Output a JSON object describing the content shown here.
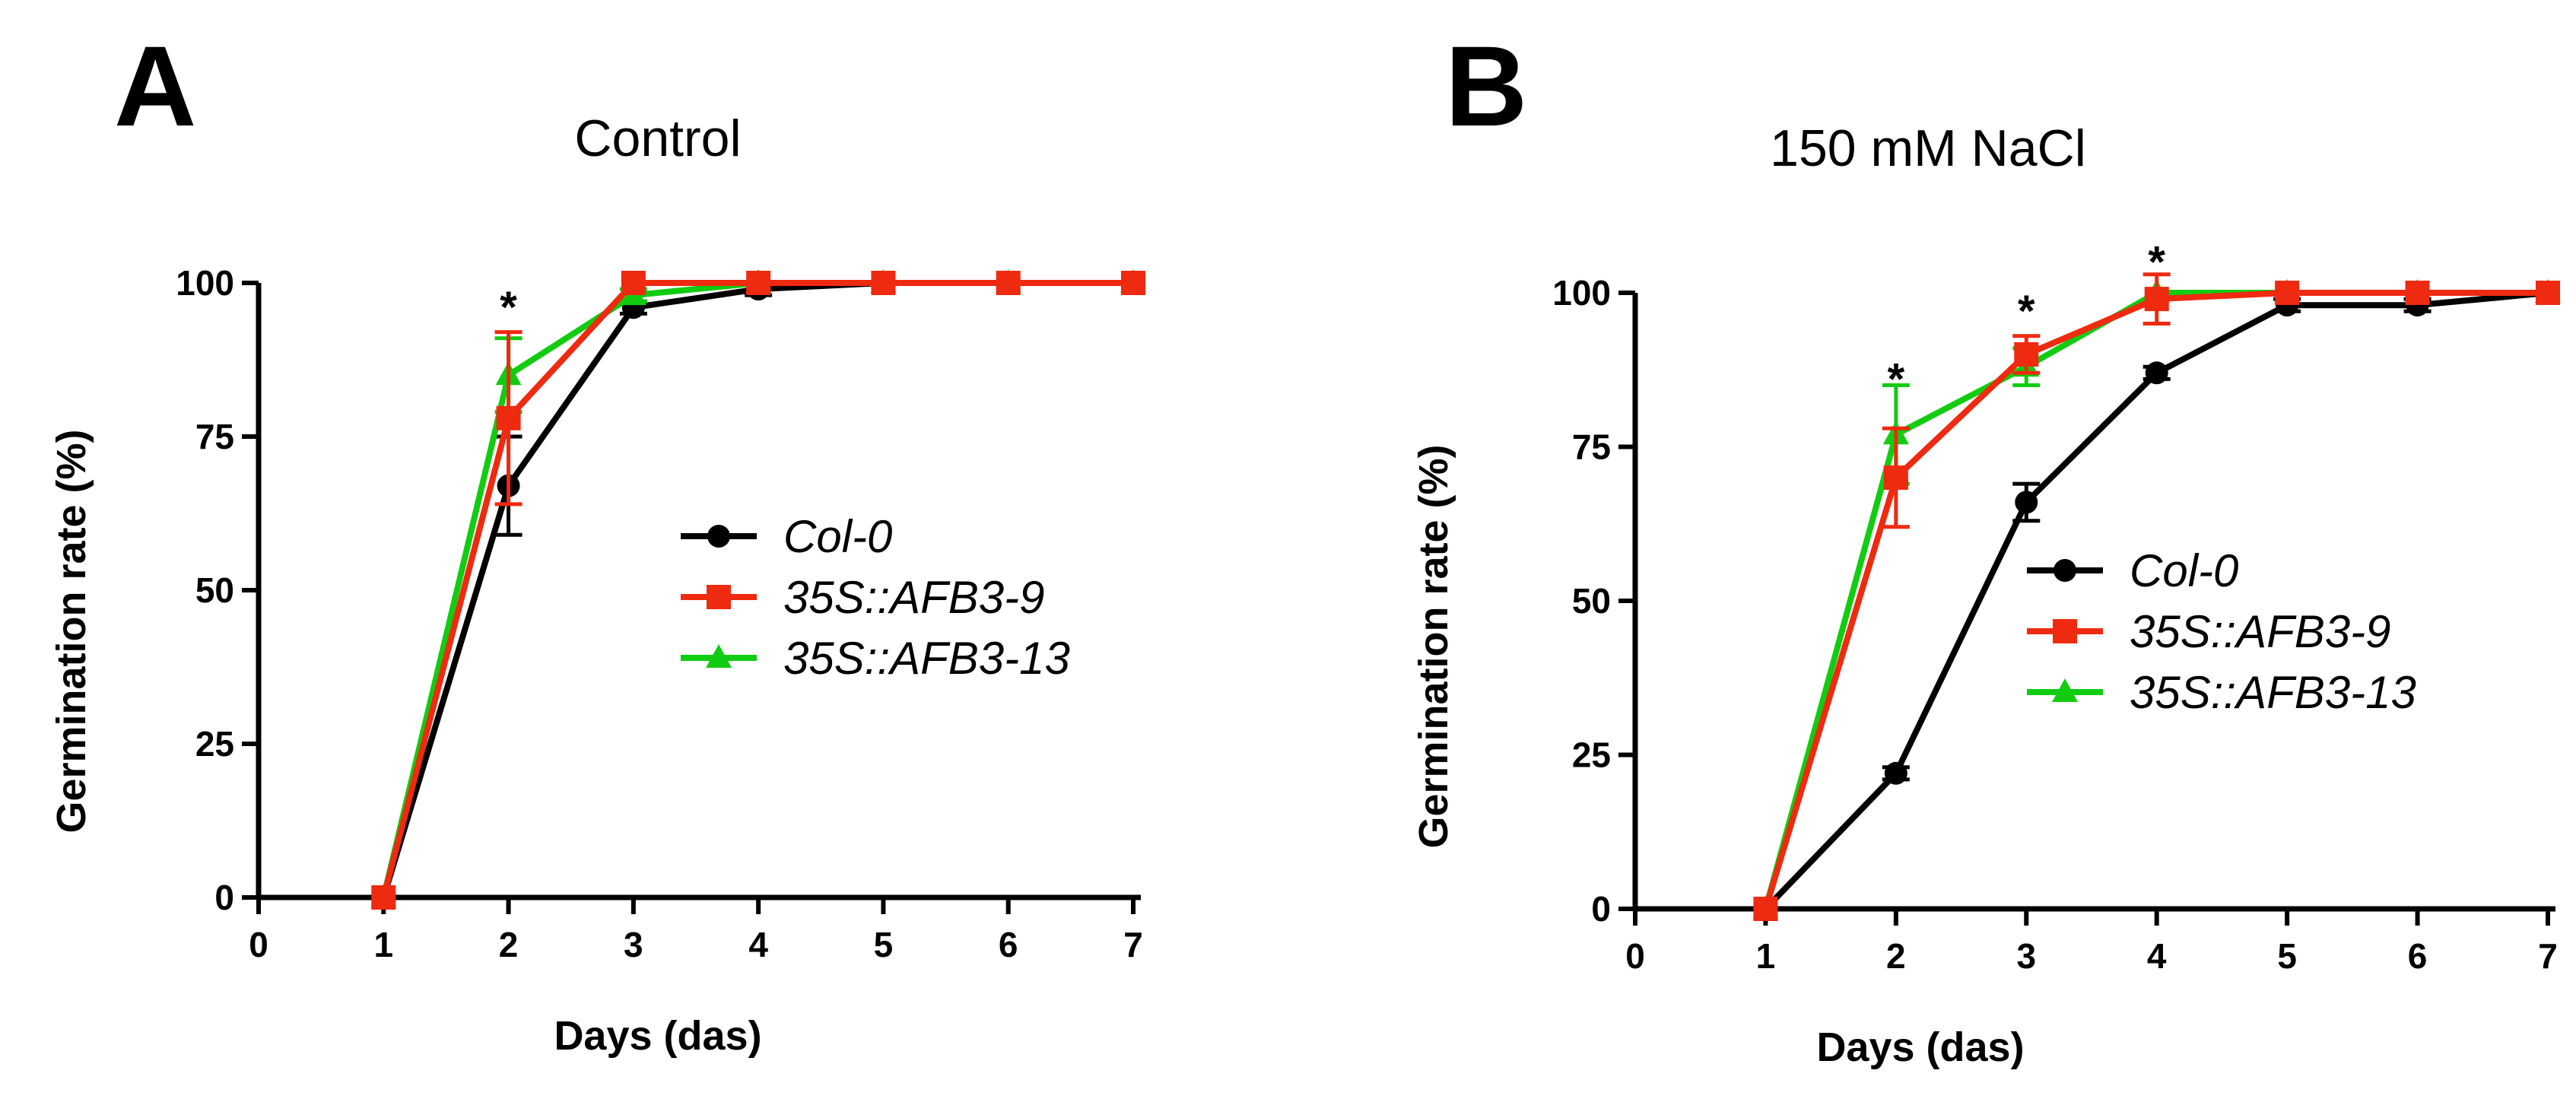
{
  "chart_data": [
    {
      "type": "line",
      "panel_label": "A",
      "title": "Control",
      "xlabel": "Days (das)",
      "ylabel": "Germination rate (%)",
      "xlim": [
        0,
        7
      ],
      "ylim": [
        0,
        100
      ],
      "x_ticks": [
        0,
        1,
        2,
        3,
        4,
        5,
        6,
        7
      ],
      "y_ticks": [
        0,
        25,
        50,
        75,
        100
      ],
      "grid": false,
      "legend_position": "center-right",
      "series": [
        {
          "name": "Col-0",
          "color": "#000000",
          "marker": "circle",
          "x": [
            1,
            2,
            3,
            4,
            5,
            6,
            7
          ],
          "y": [
            0,
            67,
            96,
            99,
            100,
            100,
            100
          ],
          "err": [
            0,
            8,
            1,
            1,
            0,
            0,
            0
          ]
        },
        {
          "name": "35S::AFB3-9",
          "color": "#ee2a10",
          "marker": "square",
          "x": [
            1,
            2,
            3,
            4,
            5,
            6,
            7
          ],
          "y": [
            0,
            78,
            100,
            100,
            100,
            100,
            100
          ],
          "err": [
            0,
            14,
            0,
            0,
            0,
            0,
            0
          ]
        },
        {
          "name": "35S::AFB3-13",
          "color": "#11cc11",
          "marker": "triangle",
          "x": [
            1,
            2,
            3,
            4,
            5,
            6,
            7
          ],
          "y": [
            0,
            85,
            98,
            100,
            100,
            100,
            100
          ],
          "err": [
            0,
            6,
            1,
            0,
            0,
            0,
            0
          ]
        }
      ],
      "annotations": [
        {
          "text": "*",
          "x": 2,
          "y": 97
        }
      ]
    },
    {
      "type": "line",
      "panel_label": "B",
      "title": "150 mM NaCl",
      "xlabel": "Days (das)",
      "ylabel": "Germination rate (%)",
      "xlim": [
        0,
        7
      ],
      "ylim": [
        0,
        100
      ],
      "x_ticks": [
        0,
        1,
        2,
        3,
        4,
        5,
        6,
        7
      ],
      "y_ticks": [
        0,
        25,
        50,
        75,
        100
      ],
      "grid": false,
      "legend_position": "center-right",
      "series": [
        {
          "name": "Col-0",
          "color": "#000000",
          "marker": "circle",
          "x": [
            1,
            2,
            3,
            4,
            5,
            6,
            7
          ],
          "y": [
            0,
            22,
            66,
            87,
            98,
            98,
            100
          ],
          "err": [
            0,
            1,
            3,
            1,
            1,
            1,
            0
          ]
        },
        {
          "name": "35S::AFB3-9",
          "color": "#ee2a10",
          "marker": "square",
          "x": [
            1,
            2,
            3,
            4,
            5,
            6,
            7
          ],
          "y": [
            0,
            70,
            90,
            99,
            100,
            100,
            100
          ],
          "err": [
            0,
            8,
            3,
            4,
            0,
            0,
            0
          ]
        },
        {
          "name": "35S::AFB3-13",
          "color": "#11cc11",
          "marker": "triangle",
          "x": [
            1,
            2,
            3,
            4,
            5,
            6,
            7
          ],
          "y": [
            0,
            77,
            88,
            100,
            100,
            100,
            100
          ],
          "err": [
            0,
            8,
            3,
            0,
            0,
            0,
            0
          ]
        }
      ],
      "annotations": [
        {
          "text": "*",
          "x": 2,
          "y": 87
        },
        {
          "text": "*",
          "x": 3,
          "y": 98
        },
        {
          "text": "*",
          "x": 4,
          "y": 106
        }
      ]
    }
  ]
}
